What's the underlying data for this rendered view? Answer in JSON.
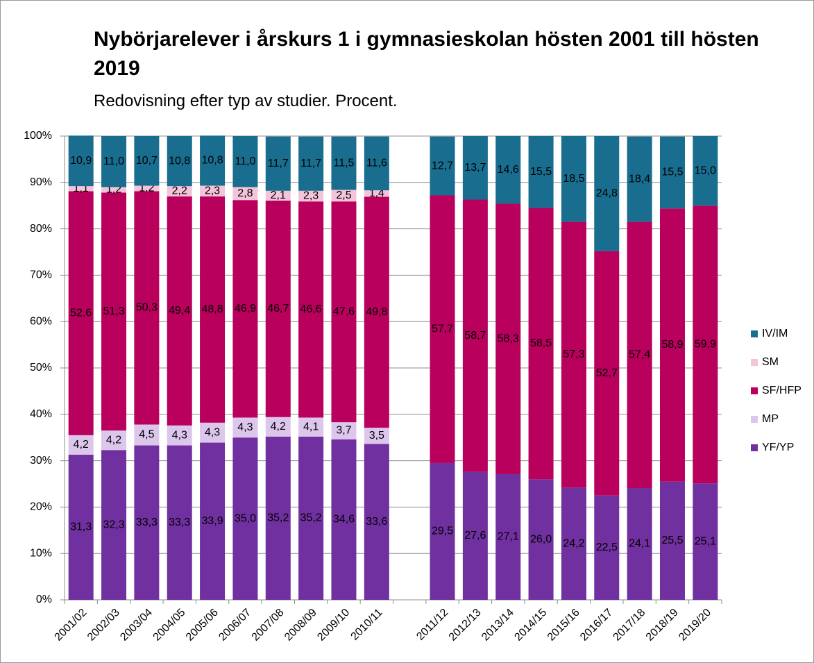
{
  "chart_data": {
    "type": "bar",
    "stacked": true,
    "title": "Nybörjarelever i årskurs 1 i gymnasieskolan hösten 2001 till hösten 2019",
    "subtitle": "Redovisning efter typ av studier. Procent.",
    "categories": [
      "2001/02",
      "2002/03",
      "2003/04",
      "2004/05",
      "2005/06",
      "2006/07",
      "2007/08",
      "2008/09",
      "2009/10",
      "2010/11",
      null,
      "2011/12",
      "2012/13",
      "2013/14",
      "2014/15",
      "2015/16",
      "2016/17",
      "2017/18",
      "2018/19",
      "2019/20"
    ],
    "series": [
      {
        "name": "YF/YP",
        "color": "#7030a0",
        "values": [
          31.3,
          32.3,
          33.3,
          33.3,
          33.9,
          35.0,
          35.2,
          35.2,
          34.6,
          33.6,
          null,
          29.5,
          27.6,
          27.1,
          26.0,
          24.2,
          22.5,
          24.1,
          25.5,
          25.1
        ],
        "value_labels": [
          "31,3",
          "32,3",
          "33,3",
          "33,3",
          "33,9",
          "35,0",
          "35,2",
          "35,2",
          "34,6",
          "33,6",
          null,
          "29,5",
          "27,6",
          "27,1",
          "26,0",
          "24,2",
          "22,5",
          "24,1",
          "25,5",
          "25,1"
        ]
      },
      {
        "name": "MP",
        "color": "#dcc6ec",
        "values": [
          4.2,
          4.2,
          4.5,
          4.3,
          4.3,
          4.3,
          4.2,
          4.1,
          3.7,
          3.5,
          null,
          null,
          null,
          null,
          null,
          null,
          null,
          null,
          null,
          null
        ],
        "value_labels": [
          "4,2",
          "4,2",
          "4,5",
          "4,3",
          "4,3",
          "4,3",
          "4,2",
          "4,1",
          "3,7",
          "3,5",
          null,
          null,
          null,
          null,
          null,
          null,
          null,
          null,
          null,
          null
        ]
      },
      {
        "name": "SF/HFP",
        "color": "#b8005c",
        "values": [
          52.6,
          51.3,
          50.3,
          49.4,
          48.8,
          46.9,
          46.7,
          46.6,
          47.6,
          49.8,
          null,
          57.7,
          58.7,
          58.3,
          58.5,
          57.3,
          52.7,
          57.4,
          58.9,
          59.9
        ],
        "value_labels": [
          "52,6",
          "51,3",
          "50,3",
          "49,4",
          "48,8",
          "46,9",
          "46,7",
          "46,6",
          "47,6",
          "49,8",
          null,
          "57,7",
          "58,7",
          "58,3",
          "58,5",
          "57,3",
          "52,7",
          "57,4",
          "58,9",
          "59,9"
        ]
      },
      {
        "name": "SM",
        "color": "#f3c4da",
        "values": [
          1.1,
          1.2,
          1.2,
          2.2,
          2.3,
          2.8,
          2.1,
          2.3,
          2.5,
          1.4,
          null,
          null,
          null,
          null,
          null,
          null,
          null,
          null,
          null,
          null
        ],
        "value_labels": [
          "1,1",
          "1,2",
          "1,2",
          "2,2",
          "2,3",
          "2,8",
          "2,1",
          "2,3",
          "2,5",
          "1,4",
          null,
          null,
          null,
          null,
          null,
          null,
          null,
          null,
          null,
          null
        ]
      },
      {
        "name": "IV/IM",
        "color": "#196d8f",
        "values": [
          10.9,
          11.0,
          10.7,
          10.8,
          10.8,
          11.0,
          11.7,
          11.7,
          11.5,
          11.6,
          null,
          12.7,
          13.7,
          14.6,
          15.5,
          18.5,
          24.8,
          18.4,
          15.5,
          15.0
        ],
        "value_labels": [
          "10,9",
          "11,0",
          "10,7",
          "10,8",
          "10,8",
          "11,0",
          "11,7",
          "11,7",
          "11,5",
          "11,6",
          null,
          "12,7",
          "13,7",
          "14,6",
          "15,5",
          "18,5",
          "24,8",
          "18,4",
          "15,5",
          "15,0"
        ]
      }
    ],
    "ylim": [
      0,
      100
    ],
    "yticks": [
      {
        "value": 0,
        "label": "0%"
      },
      {
        "value": 10,
        "label": "10%"
      },
      {
        "value": 20,
        "label": "20%"
      },
      {
        "value": 30,
        "label": "30%"
      },
      {
        "value": 40,
        "label": "40%"
      },
      {
        "value": 50,
        "label": "50%"
      },
      {
        "value": 60,
        "label": "60%"
      },
      {
        "value": 70,
        "label": "70%"
      },
      {
        "value": 80,
        "label": "80%"
      },
      {
        "value": 90,
        "label": "90%"
      },
      {
        "value": 100,
        "label": "100%"
      }
    ],
    "grid": true,
    "legend": "right"
  }
}
